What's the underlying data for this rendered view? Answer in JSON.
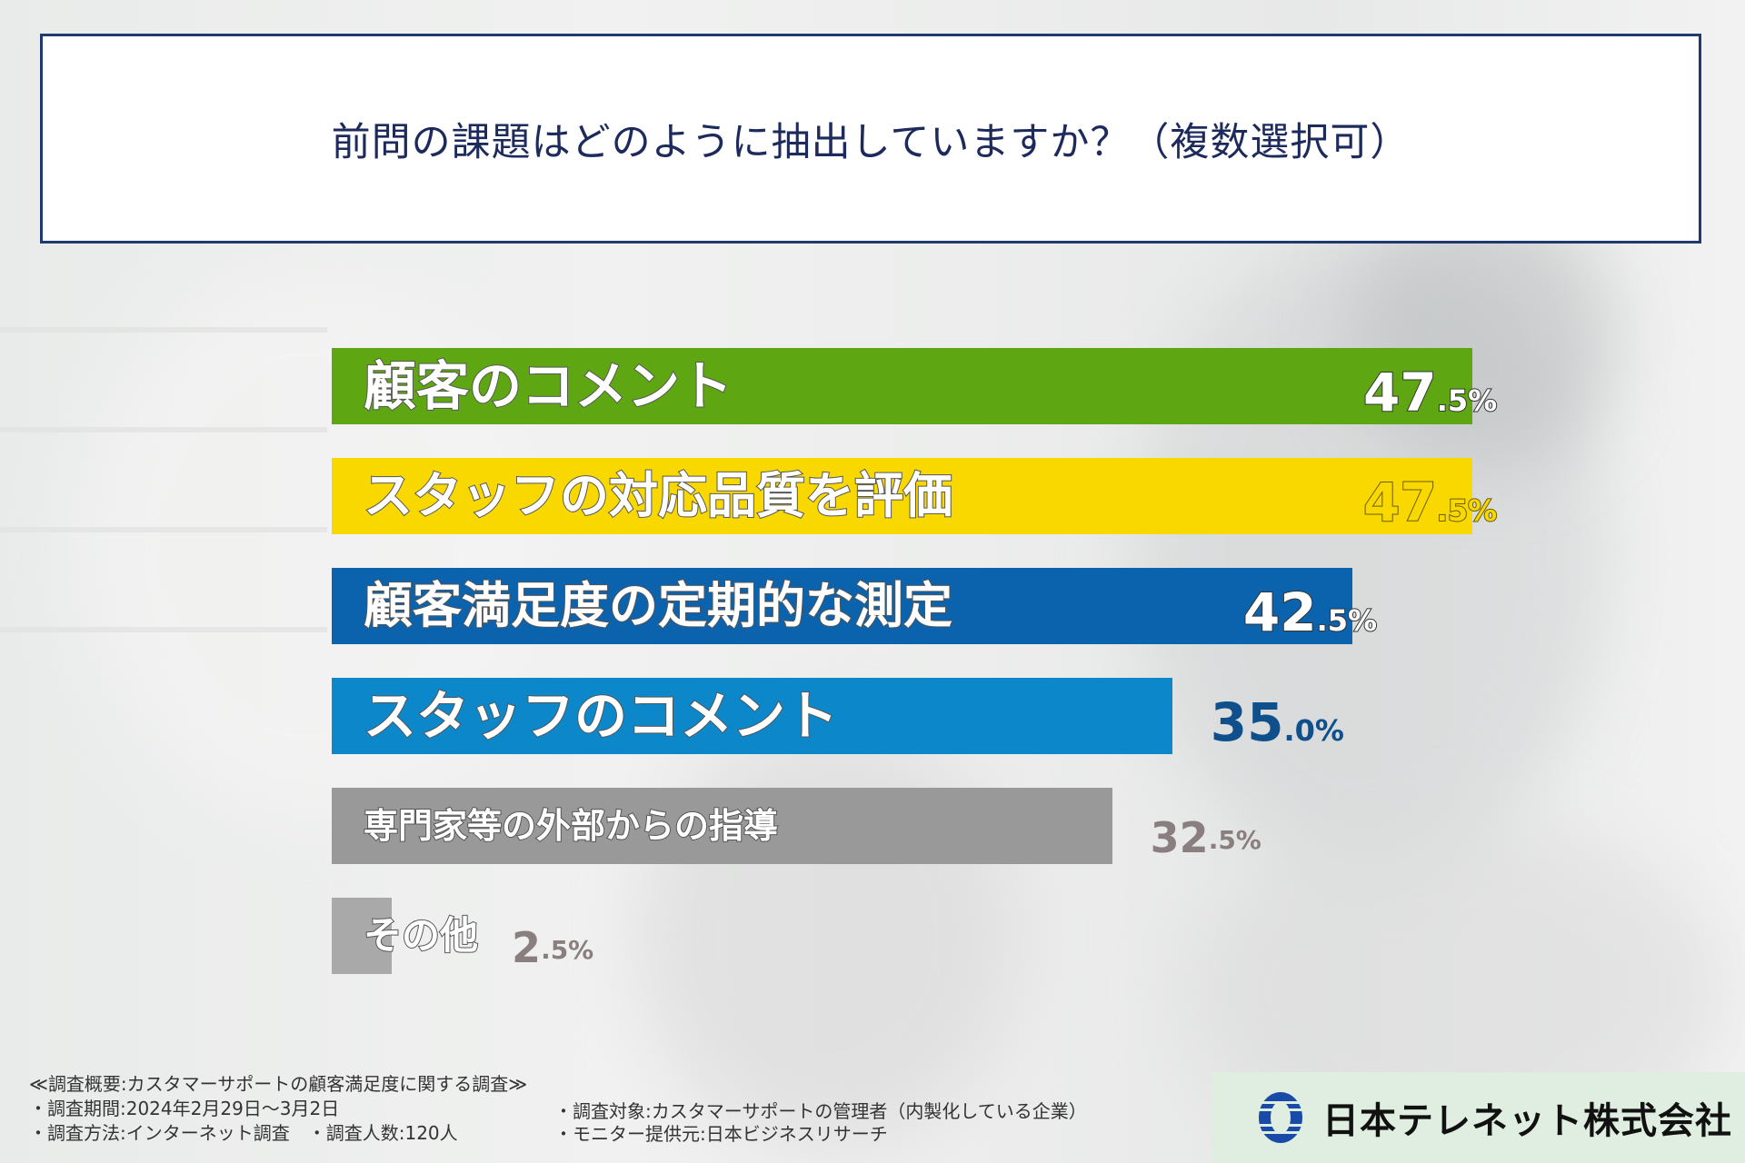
{
  "title": "前問の課題はどのように抽出していますか？（複数選択可）",
  "chart_data": {
    "type": "bar",
    "categories": [
      "顧客のコメント",
      "スタッフの対応品質を評価",
      "顧客満足度の定期的な測定",
      "スタッフのコメント",
      "専門家等の外部からの指導",
      "その他"
    ],
    "values": [
      47.5,
      47.5,
      42.5,
      35.0,
      32.5,
      2.5
    ],
    "value_labels": [
      {
        "int": "47",
        "dec": ".5%"
      },
      {
        "int": "47",
        "dec": ".5%"
      },
      {
        "int": "42",
        "dec": ".5%"
      },
      {
        "int": "35",
        "dec": ".0%"
      },
      {
        "int": "32",
        "dec": ".5%"
      },
      {
        "int": "2",
        "dec": ".5%"
      }
    ],
    "colors": [
      "#5ea713",
      "#f9d800",
      "#0b62ad",
      "#0c87c9",
      "#999999",
      "#a9a9a9"
    ],
    "value_colors": [
      "#ffffff",
      "#f9d800",
      "#ffffff",
      "#0f4f8c",
      "#8a7f7f",
      "#8a7f7f"
    ],
    "orientation": "horizontal",
    "xlim": [
      0,
      47.5
    ]
  },
  "footer": {
    "summary": "≪調査概要:カスタマーサポートの顧客満足度に関する調査≫",
    "period": "・調査期間:2024年2月29日～3月2日",
    "target": "・調査対象:カスタマーサポートの管理者（内製化している企業）",
    "method": "・調査方法:インターネット調査　・調査人数:120人",
    "monitor": "・モニター提供元:日本ビジネスリサーチ"
  },
  "logo": {
    "company": "日本テレネット株式会社",
    "mark_color": "#1a4aa8"
  }
}
